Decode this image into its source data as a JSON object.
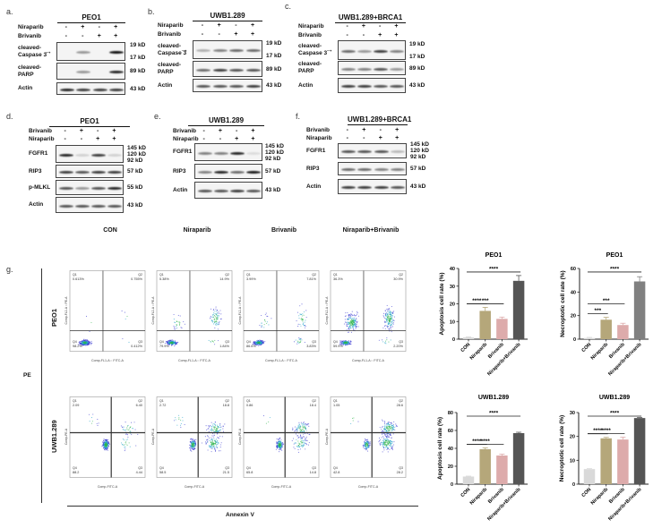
{
  "blot_panels": [
    {
      "id": "a",
      "label": "a.",
      "title": "PEO1",
      "treatments": [
        {
          "name": "Niraparib",
          "signs": [
            "-",
            "+",
            "-",
            "+"
          ]
        },
        {
          "name": "Brivanib",
          "signs": [
            "-",
            "-",
            "+",
            "+"
          ]
        }
      ],
      "blots": [
        {
          "protein": "cleaved-\nCaspase 3",
          "kd": "19 kD\n\n17 kD",
          "arrow": true,
          "intensity": [
            0,
            0.4,
            0,
            1
          ]
        },
        {
          "protein": "cleaved-\nPARP",
          "kd": "89 kD",
          "intensity": [
            0,
            0.4,
            0,
            0.9
          ]
        },
        {
          "protein": "Actin",
          "kd": "43 kD",
          "intensity": [
            0.9,
            0.8,
            0.8,
            0.8
          ]
        }
      ]
    },
    {
      "id": "b",
      "label": "b.",
      "title": "UWB1.289",
      "treatments": [
        {
          "name": "Niraparib",
          "signs": [
            "-",
            "+",
            "-",
            "+"
          ]
        },
        {
          "name": "Brivanib",
          "signs": [
            "-",
            "-",
            "+",
            "+"
          ]
        }
      ],
      "blots": [
        {
          "protein": "cleaved-\nCaspase 3",
          "kd": "19 kD\n\n17 kD",
          "arrow": true,
          "intensity": [
            0.3,
            0.5,
            0.6,
            0.6
          ]
        },
        {
          "protein": "cleaved-\nPARP",
          "kd": "89 kD",
          "intensity": [
            0.6,
            0.8,
            0.7,
            0.7
          ]
        },
        {
          "protein": "Actin",
          "kd": "43 kD",
          "intensity": [
            0.7,
            0.7,
            0.7,
            0.8
          ]
        }
      ]
    },
    {
      "id": "c",
      "label": "c.",
      "title": "UWB1.289+BRCA1",
      "treatments": [
        {
          "name": "Niraparib",
          "signs": [
            "-",
            "+",
            "-",
            "+"
          ]
        },
        {
          "name": "Brivanib",
          "signs": [
            "-",
            "-",
            "+",
            "+"
          ]
        }
      ],
      "blots": [
        {
          "protein": "cleaved-\nCaspase 3",
          "kd": "19 kD\n\n17 kD",
          "arrow": true,
          "intensity": [
            0.6,
            0.4,
            0.8,
            0.5
          ]
        },
        {
          "protein": "cleaved-\nPARP",
          "kd": "89 kD",
          "intensity": [
            0.5,
            0.5,
            0.7,
            0.4
          ]
        },
        {
          "protein": "Actin",
          "kd": "43 kD",
          "intensity": [
            0.8,
            0.8,
            0.7,
            0.7
          ]
        }
      ]
    },
    {
      "id": "d",
      "label": "d.",
      "title": "PEO1",
      "treatments": [
        {
          "name": "Brivanib",
          "signs": [
            "-",
            "+",
            "-",
            "+"
          ]
        },
        {
          "name": "Niraparib",
          "signs": [
            "-",
            "-",
            "+",
            "+"
          ]
        }
      ],
      "blots": [
        {
          "protein": "FGFR1",
          "kd": "145 kD\n120 kD\n   92 kD",
          "intensity": [
            0.9,
            0.15,
            0.8,
            0.15
          ]
        },
        {
          "protein": "RIP3",
          "kd": "57 kD",
          "intensity": [
            0.8,
            0.7,
            0.8,
            0.8
          ]
        },
        {
          "protein": "p-MLKL",
          "kd": "55 kD",
          "intensity": [
            0.7,
            0.4,
            0.7,
            0.9
          ]
        },
        {
          "protein": "Actin",
          "kd": "43 kD",
          "intensity": [
            0.7,
            0.7,
            0.7,
            0.7
          ]
        }
      ]
    },
    {
      "id": "e",
      "label": "e.",
      "title": "UWB1.289",
      "treatments": [
        {
          "name": "Brivanib",
          "signs": [
            "-",
            "+",
            "-",
            "+"
          ]
        },
        {
          "name": "Niraparib",
          "signs": [
            "-",
            "-",
            "+",
            "+"
          ]
        }
      ],
      "blots": [
        {
          "protein": "FGFR1",
          "kd": "145 kD\n120 kD\n   92 kD",
          "intensity": [
            0.5,
            0.5,
            0.9,
            0.1
          ]
        },
        {
          "protein": "RIP3",
          "kd": "57 kD",
          "intensity": [
            0.5,
            0.9,
            0.6,
            0.95
          ]
        },
        {
          "protein": "Actin",
          "kd": "43 kD",
          "intensity": [
            0.7,
            0.7,
            0.8,
            0.7
          ]
        }
      ]
    },
    {
      "id": "f",
      "label": "f.",
      "title": "UWB1.289+BRCA1",
      "treatments": [
        {
          "name": "Brivanib",
          "signs": [
            "-",
            "+",
            "-",
            "+"
          ]
        },
        {
          "name": "Niraparib",
          "signs": [
            "-",
            "-",
            "+",
            "+"
          ]
        }
      ],
      "blots": [
        {
          "protein": "FGFR1",
          "kd": "145 kD\n120 kD\n92 kD",
          "intensity": [
            0.7,
            0.7,
            0.7,
            0.25
          ]
        },
        {
          "protein": "RIP3",
          "kd": "57 kD",
          "intensity": [
            0.6,
            0.6,
            0.5,
            0.5
          ]
        },
        {
          "protein": "Actin",
          "kd": "43 kD",
          "intensity": [
            0.8,
            0.8,
            0.8,
            0.7
          ]
        }
      ]
    }
  ],
  "flow": {
    "label": "g.",
    "columns": [
      "CON",
      "Niraparib",
      "Brivanib",
      "Niraparib+Brivanib"
    ],
    "y_axis_label": "PE",
    "x_axis_label": "Annexin V",
    "rows": [
      {
        "name": "PEO1",
        "x_label": "Comp-FL1-A :: FITC-A",
        "y_label": "Comp-FL2-A :: PE-A",
        "plots": [
          {
            "Q1": "0.613%",
            "Q2": "0.755%",
            "Q3": "0.412%",
            "Q4": "98.2%"
          },
          {
            "Q1": "5.38%",
            "Q2": "14.9%",
            "Q3": "1.84%",
            "Q4": "79.9%"
          },
          {
            "Q1": "3.99%",
            "Q2": "7.81%",
            "Q3": "3.83%",
            "Q4": "86.6%"
          },
          {
            "Q1": "36.3%",
            "Q2": "30.9%",
            "Q3": "2.20%",
            "Q4": "59.9%"
          }
        ]
      },
      {
        "name": "UWB1.289",
        "x_label": "Comp-FITC-A",
        "y_label": "Comp-PE-A",
        "plots": [
          {
            "Q1": "2.09",
            "Q2": "6.40",
            "Q3": "4.44",
            "Q4": "88.2"
          },
          {
            "Q1": "2.72",
            "Q2": "18.8",
            "Q3": "21.5",
            "Q4": "58.5"
          },
          {
            "Q1": "0.86",
            "Q2": "18.4",
            "Q3": "14.8",
            "Q4": "65.8"
          },
          {
            "Q1": "1.05",
            "Q2": "28.6",
            "Q3": "28.2",
            "Q4": "42.8"
          }
        ]
      }
    ]
  },
  "chart_data": [
    {
      "type": "bar",
      "title": "PEO1",
      "ylabel": "Apoptosis cell rate (%)",
      "ylim": [
        0,
        40
      ],
      "yticks": [
        0,
        10,
        20,
        30,
        40
      ],
      "categories": [
        "CON",
        "Niraparib",
        "Brivanib",
        "Niraparib+Brivanib"
      ],
      "values": [
        1,
        16,
        11.5,
        33
      ],
      "errors": [
        0.3,
        2,
        1,
        3
      ],
      "colors": [
        "#d9d9d9",
        "#b5a77a",
        "#ddabab",
        "#555555"
      ],
      "significance": [
        {
          "to": "Niraparib",
          "label": "****"
        },
        {
          "to": "Brivanib",
          "label": "***"
        },
        {
          "to": "Niraparib+Brivanib",
          "label": "****"
        }
      ]
    },
    {
      "type": "bar",
      "title": "PEO1",
      "ylabel": "Necroptotic cell rate (%)",
      "ylim": [
        0,
        60
      ],
      "yticks": [
        0,
        20,
        40,
        60
      ],
      "categories": [
        "CON",
        "Niraparib",
        "Brivanib",
        "Niraparib+Brivanib"
      ],
      "values": [
        1,
        16.5,
        12,
        49
      ],
      "errors": [
        0.5,
        2,
        1.5,
        4
      ],
      "colors": [
        "#d9d9d9",
        "#b5a77a",
        "#ddabab",
        "#808080"
      ],
      "significance": [
        {
          "to": "Niraparib",
          "label": "***"
        },
        {
          "to": "Brivanib",
          "label": "***"
        },
        {
          "to": "Niraparib+Brivanib",
          "label": "****"
        }
      ]
    },
    {
      "type": "bar",
      "title": "UWB1.289",
      "ylabel": "Apoptosis cell rate (%)",
      "ylim": [
        0,
        80
      ],
      "yticks": [
        0,
        20,
        40,
        60,
        80
      ],
      "categories": [
        "CON",
        "Niraparib",
        "Brivanib",
        "Niraparib+Brivanib"
      ],
      "values": [
        8.5,
        39,
        32,
        57
      ],
      "errors": [
        0.5,
        1.5,
        1.5,
        1
      ],
      "colors": [
        "#d9d9d9",
        "#b5a77a",
        "#ddabab",
        "#555555"
      ],
      "significance": [
        {
          "to": "Niraparib",
          "label": "****"
        },
        {
          "to": "Brivanib",
          "label": "****"
        },
        {
          "to": "Niraparib+Brivanib",
          "label": "****"
        }
      ]
    },
    {
      "type": "bar",
      "title": "UWB1.289",
      "ylabel": "Necroptotic cell rate (%)",
      "ylim": [
        0,
        30
      ],
      "yticks": [
        0,
        10,
        20,
        30
      ],
      "categories": [
        "CON",
        "Niraparib",
        "Brivanib",
        "Niraparib+Brivanib"
      ],
      "values": [
        6.3,
        19.2,
        18.7,
        27.7
      ],
      "errors": [
        0.2,
        0.4,
        1,
        0.2
      ],
      "colors": [
        "#d9d9d9",
        "#b5a77a",
        "#ddabab",
        "#555555"
      ],
      "significance": [
        {
          "to": "Niraparib",
          "label": "****"
        },
        {
          "to": "Brivanib",
          "label": "****"
        },
        {
          "to": "Niraparib+Brivanib",
          "label": "****"
        }
      ]
    }
  ]
}
